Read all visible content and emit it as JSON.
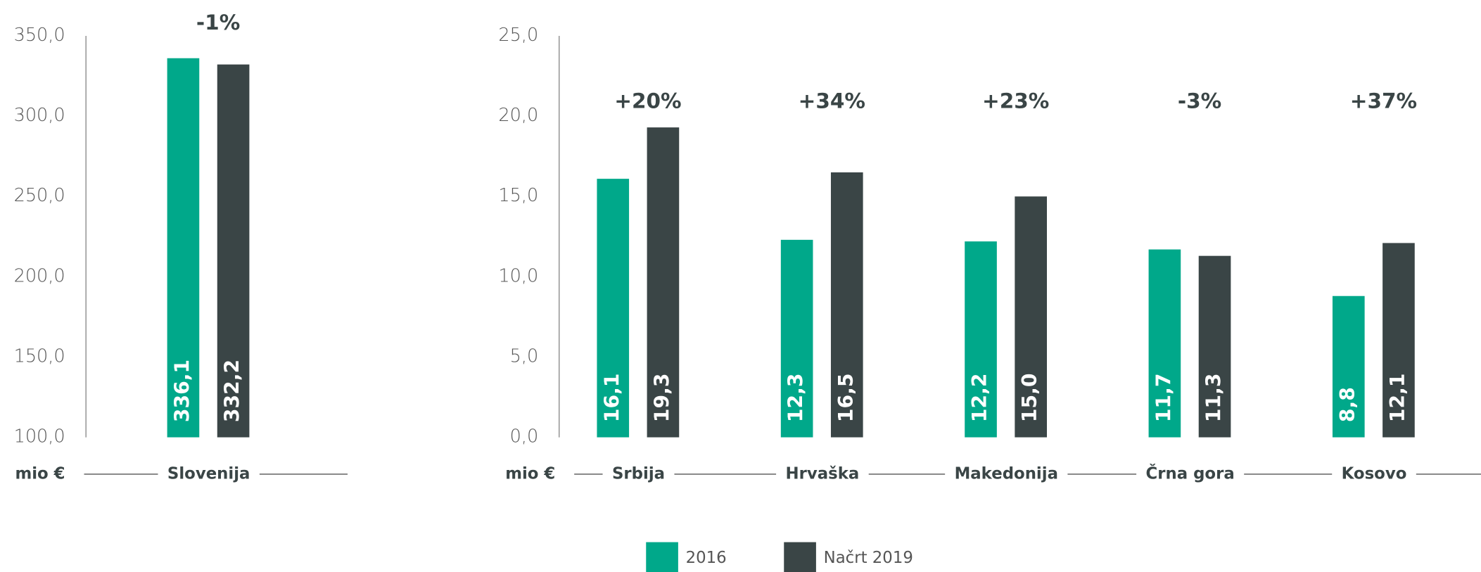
{
  "chart_data": [
    {
      "type": "bar",
      "y_axis_label": "mio €",
      "categories": [
        "Slovenija"
      ],
      "series": [
        {
          "name": "2016",
          "color": "#00a88a",
          "values": [
            336.1
          ],
          "value_labels": [
            "336,1"
          ]
        },
        {
          "name": "Načrt 2019",
          "color": "#3a4546",
          "values": [
            332.2
          ],
          "value_labels": [
            "332,2"
          ]
        }
      ],
      "annotations": [
        "-1%"
      ],
      "ylim": [
        100,
        350
      ],
      "yticks": [
        {
          "value": 100,
          "label": "100,0"
        },
        {
          "value": 150,
          "label": "150,0"
        },
        {
          "value": 200,
          "label": "200,0"
        },
        {
          "value": 250,
          "label": "250,0"
        },
        {
          "value": 300,
          "label": "300,0"
        },
        {
          "value": 350,
          "label": "350,0"
        }
      ]
    },
    {
      "type": "bar",
      "y_axis_label": "mio €",
      "categories": [
        "Srbija",
        "Hrvaška",
        "Makedonija",
        "Črna gora",
        "Kosovo"
      ],
      "series": [
        {
          "color": "#00a88a",
          "values": [
            16.1,
            12.3,
            12.2,
            11.7,
            8.8
          ],
          "value_labels": [
            "16,1",
            "12,3",
            "12,2",
            "11,7",
            "8,8"
          ]
        },
        {
          "color": "#3a4546",
          "values": [
            19.3,
            16.5,
            15.0,
            11.3,
            12.1
          ],
          "value_labels": [
            "19,3",
            "16,5",
            "15,0",
            "11,3",
            "12,1"
          ]
        }
      ],
      "annotations": [
        "+20%",
        "+34%",
        "+23%",
        "-3%",
        "+37%"
      ],
      "ylim": [
        0,
        25
      ],
      "yticks": [
        {
          "value": 0,
          "label": "0,0"
        },
        {
          "value": 5,
          "label": "5,0"
        },
        {
          "value": 10,
          "label": "10,0"
        },
        {
          "value": 15,
          "label": "15,0"
        },
        {
          "value": 20,
          "label": "20,0"
        },
        {
          "value": 25,
          "label": "25,0"
        }
      ]
    }
  ]
}
